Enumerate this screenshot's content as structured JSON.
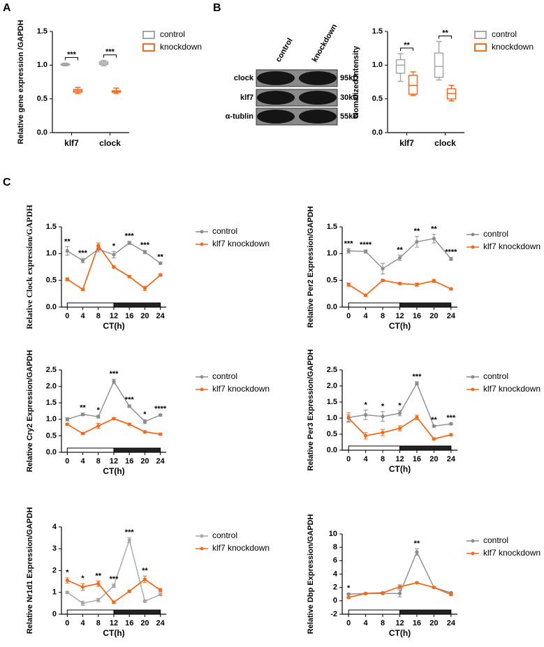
{
  "panel_labels": [
    "A",
    "B",
    "C"
  ],
  "blot": {
    "columns": [
      "control",
      "knockdown"
    ],
    "rows": [
      {
        "label": "clock",
        "size": "95kD"
      },
      {
        "label": "klf7",
        "size": "30kD"
      },
      {
        "label": "α-tublin",
        "size": "55kD"
      }
    ]
  },
  "chart_data": [
    {
      "type": "box",
      "ylabel": "Relative gene expression /GAPDH",
      "categories": [
        "klf7",
        "clock"
      ],
      "ylim": [
        0,
        1.5
      ],
      "yticks": [
        {
          "value": 0,
          "label": "0.0"
        },
        0.5,
        {
          "value": 1,
          "label": "1.0"
        },
        1.5
      ],
      "annotations": [
        "***",
        "***"
      ],
      "series": [
        {
          "name": "control",
          "color": "#a6a6a6",
          "min": [
            0.99,
            0.99
          ],
          "q1": [
            1.0,
            1.01
          ],
          "values": [
            1.01,
            1.03
          ],
          "q3": [
            1.02,
            1.05
          ],
          "max": [
            1.03,
            1.07
          ]
        },
        {
          "name": "knockdown",
          "color": "#f26a1b",
          "min": [
            0.58,
            0.58
          ],
          "q1": [
            0.6,
            0.6
          ],
          "values": [
            0.62,
            0.61
          ],
          "q3": [
            0.64,
            0.62
          ],
          "max": [
            0.67,
            0.66
          ]
        }
      ]
    },
    {
      "type": "box",
      "ylabel": "Nomalized Intensity",
      "categories": [
        "klf7",
        "clock"
      ],
      "ylim": [
        0,
        1.5
      ],
      "yticks": [
        {
          "value": 0,
          "label": "0.0"
        },
        0.5,
        {
          "value": 1,
          "label": "1.0"
        },
        1.5
      ],
      "annotations": [
        "**",
        "**"
      ],
      "series": [
        {
          "name": "control",
          "color": "#a6a6a6",
          "min": [
            0.76,
            0.78
          ],
          "q1": [
            0.88,
            0.82
          ],
          "values": [
            1.0,
            0.98
          ],
          "q3": [
            1.08,
            1.18
          ],
          "max": [
            1.17,
            1.35
          ]
        },
        {
          "name": "knockdown",
          "color": "#f26a1b",
          "min": [
            0.55,
            0.47
          ],
          "q1": [
            0.57,
            0.5
          ],
          "values": [
            0.7,
            0.58
          ],
          "q3": [
            0.85,
            0.65
          ],
          "max": [
            0.9,
            0.7
          ]
        }
      ]
    },
    {
      "type": "line",
      "ylabel": "Relative Clock expression/GAPDH",
      "xlabel": "CT(h)",
      "x": [
        0,
        4,
        8,
        12,
        16,
        20,
        24
      ],
      "xlim": [
        -1.5,
        25.5
      ],
      "xticks": [
        0,
        4,
        8,
        12,
        16,
        20,
        24
      ],
      "ylim": [
        0,
        1.5
      ],
      "yticks": [
        {
          "value": 0,
          "label": "0.0"
        },
        0.5,
        {
          "value": 1,
          "label": "1.0"
        },
        1.5
      ],
      "light_dark": {
        "light": [
          0,
          12
        ],
        "dark": [
          12,
          24
        ]
      },
      "annotations": [
        "**",
        "***",
        null,
        "*",
        "***",
        "***",
        "**"
      ],
      "series": [
        {
          "name": "control",
          "color": "#8c8c8c",
          "values": [
            1.05,
            0.87,
            1.08,
            0.98,
            1.2,
            1.03,
            0.82
          ],
          "errors": [
            0.08,
            0.04,
            0.05,
            0.06,
            0.03,
            0.03,
            0.02
          ]
        },
        {
          "name": "klf7 knockdown",
          "color": "#f26a1b",
          "values": [
            0.52,
            0.33,
            1.15,
            0.75,
            0.57,
            0.35,
            0.6
          ],
          "errors": [
            0.03,
            0.02,
            0.05,
            0.02,
            0.02,
            0.04,
            0.02
          ]
        }
      ]
    },
    {
      "type": "line",
      "ylabel": "Relative Per2 Expression/GAPDH",
      "xlabel": "CT(h)",
      "x": [
        0,
        4,
        8,
        12,
        16,
        20,
        24
      ],
      "xlim": [
        -1.5,
        25.5
      ],
      "xticks": [
        0,
        4,
        8,
        12,
        16,
        20,
        24
      ],
      "ylim": [
        0,
        1.5
      ],
      "yticks": [
        {
          "value": 0,
          "label": "0.0"
        },
        0.5,
        {
          "value": 1,
          "label": "1.0"
        },
        1.5
      ],
      "light_dark": {
        "light": [
          0,
          12
        ],
        "dark": [
          12,
          24
        ]
      },
      "annotations": [
        "***",
        "****",
        null,
        "**",
        "**",
        "**",
        "****"
      ],
      "series": [
        {
          "name": "control",
          "color": "#8c8c8c",
          "values": [
            1.05,
            1.04,
            0.72,
            0.92,
            1.22,
            1.28,
            0.9
          ],
          "errors": [
            0.04,
            0.03,
            0.1,
            0.05,
            0.1,
            0.08,
            0.03
          ]
        },
        {
          "name": "klf7 knockdown",
          "color": "#f26a1b",
          "values": [
            0.42,
            0.22,
            0.5,
            0.44,
            0.42,
            0.49,
            0.34
          ],
          "errors": [
            0.03,
            0.02,
            0.02,
            0.02,
            0.03,
            0.03,
            0.02
          ]
        }
      ]
    },
    {
      "type": "line",
      "ylabel": "Relative Cry2 Expression/GAPDH",
      "xlabel": "CT(h)",
      "x": [
        0,
        4,
        8,
        12,
        16,
        20,
        24
      ],
      "xlim": [
        -1.5,
        25.5
      ],
      "xticks": [
        0,
        4,
        8,
        12,
        16,
        20,
        24
      ],
      "ylim": [
        0,
        2.5
      ],
      "yticks": [
        {
          "value": 0,
          "label": "0.0"
        },
        0.5,
        {
          "value": 1,
          "label": "1.0"
        },
        1.5,
        {
          "value": 2,
          "label": "2.0"
        },
        2.5
      ],
      "light_dark": {
        "light": [
          0,
          12
        ],
        "dark": [
          12,
          24
        ]
      },
      "annotations": [
        null,
        "**",
        "*",
        "***",
        "***",
        "*",
        "****"
      ],
      "series": [
        {
          "name": "control",
          "color": "#8c8c8c",
          "values": [
            1.0,
            1.15,
            1.08,
            2.15,
            1.4,
            0.93,
            1.13
          ],
          "errors": [
            0.05,
            0.04,
            0.04,
            0.07,
            0.04,
            0.06,
            0.03
          ]
        },
        {
          "name": "klf7 knockdown",
          "color": "#f26a1b",
          "values": [
            0.85,
            0.57,
            0.8,
            1.02,
            0.85,
            0.62,
            0.55
          ],
          "errors": [
            0.03,
            0.03,
            0.08,
            0.03,
            0.03,
            0.03,
            0.03
          ]
        }
      ]
    },
    {
      "type": "line",
      "ylabel": "Relative Per3 Expression/GAPDH",
      "xlabel": "CT(h)",
      "x": [
        0,
        4,
        8,
        12,
        16,
        20,
        24
      ],
      "xlim": [
        -1.5,
        25.5
      ],
      "xticks": [
        0,
        4,
        8,
        12,
        16,
        20,
        24
      ],
      "ylim": [
        0,
        2.5
      ],
      "yticks": [
        {
          "value": 0,
          "label": "0.0"
        },
        0.5,
        {
          "value": 1,
          "label": "1.0"
        },
        1.5,
        {
          "value": 2,
          "label": "2.0"
        },
        2.5
      ],
      "light_dark": {
        "light": [
          0,
          12
        ],
        "dark": [
          12,
          24
        ]
      },
      "annotations": [
        null,
        "*",
        "*",
        "*",
        "***",
        "**",
        "***"
      ],
      "series": [
        {
          "name": "control",
          "color": "#8c8c8c",
          "values": [
            1.02,
            1.1,
            1.05,
            1.15,
            2.08,
            0.75,
            0.82
          ],
          "errors": [
            0.15,
            0.15,
            0.15,
            0.08,
            0.05,
            0.03,
            0.03
          ]
        },
        {
          "name": "klf7 knockdown",
          "color": "#f26a1b",
          "values": [
            1.0,
            0.45,
            0.55,
            0.68,
            1.02,
            0.35,
            0.48
          ],
          "errors": [
            0.1,
            0.1,
            0.1,
            0.08,
            0.07,
            0.03,
            0.03
          ]
        }
      ]
    },
    {
      "type": "line",
      "ylabel": "Relative Nr1d1 Expression/GAPDH",
      "xlabel": "CT(h)",
      "x": [
        0,
        4,
        8,
        12,
        16,
        20,
        24
      ],
      "xlim": [
        -1.5,
        25.5
      ],
      "xticks": [
        0,
        4,
        8,
        12,
        16,
        20,
        24
      ],
      "ylim": [
        0,
        4
      ],
      "yticks": [
        0,
        1,
        2,
        3,
        4
      ],
      "light_dark": {
        "light": [
          0,
          12
        ],
        "dark": [
          12,
          24
        ]
      },
      "annotations": [
        "*",
        "*",
        "**",
        "***",
        "***",
        "**",
        null
      ],
      "series": [
        {
          "name": "control",
          "color": "#a6a6a6",
          "values": [
            1.0,
            0.5,
            0.65,
            1.3,
            3.4,
            0.6,
            0.9
          ],
          "errors": [
            0.05,
            0.1,
            0.08,
            0.08,
            0.12,
            0.05,
            0.05
          ]
        },
        {
          "name": "klf7 knockdown",
          "color": "#f26a1b",
          "values": [
            1.55,
            1.25,
            1.4,
            0.55,
            1.05,
            1.6,
            1.1
          ],
          "errors": [
            0.12,
            0.15,
            0.12,
            0.05,
            0.05,
            0.15,
            0.08
          ]
        }
      ]
    },
    {
      "type": "line",
      "ylabel": "Relative Dbp Expression/GAPDH",
      "xlabel": "CT(h)",
      "x": [
        0,
        4,
        8,
        12,
        16,
        20,
        24
      ],
      "xlim": [
        -1.5,
        25.5
      ],
      "xticks": [
        0,
        4,
        8,
        12,
        16,
        20,
        24
      ],
      "ylim": [
        -2,
        10
      ],
      "yticks": [
        -2,
        0,
        2,
        4,
        6,
        8,
        10
      ],
      "light_dark": {
        "light": [
          0,
          12
        ],
        "dark": [
          12,
          24
        ]
      },
      "annotations": [
        "*",
        null,
        null,
        null,
        "**",
        null,
        null
      ],
      "series": [
        {
          "name": "control",
          "color": "#8c8c8c",
          "values": [
            1.0,
            1.1,
            1.1,
            1.1,
            7.3,
            2.0,
            1.2
          ],
          "errors": [
            0.1,
            0.1,
            0.1,
            0.5,
            0.5,
            0.1,
            0.1
          ]
        },
        {
          "name": "klf7 knockdown",
          "color": "#f26a1b",
          "values": [
            0.5,
            1.1,
            1.2,
            2.1,
            2.7,
            2.0,
            0.95
          ],
          "errors": [
            0.1,
            0.1,
            0.1,
            0.3,
            0.1,
            0.1,
            0.1
          ]
        }
      ]
    }
  ]
}
